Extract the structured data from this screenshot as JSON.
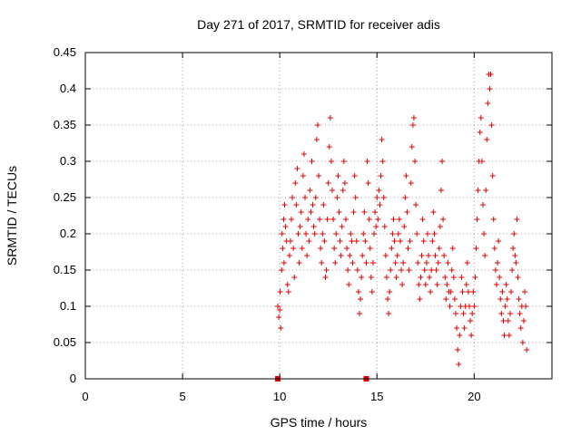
{
  "chart_data": {
    "type": "scatter",
    "title": "Day 271 of 2017, SRMTID for receiver adis",
    "xlabel": "GPS time / hours",
    "ylabel": "SRMTID / TECUs",
    "xlim": [
      0,
      24
    ],
    "ylim": [
      0,
      0.45
    ],
    "xticks": [
      0,
      5,
      10,
      15,
      20
    ],
    "xtick_labels": [
      "0",
      "5",
      "10",
      "15",
      "20"
    ],
    "yticks": [
      0,
      0.05,
      0.1,
      0.15,
      0.2,
      0.25,
      0.3,
      0.35,
      0.4,
      0.45
    ],
    "ytick_labels": [
      "0",
      "0.05",
      "0.1",
      "0.15",
      "0.2",
      "0.25",
      "0.3",
      "0.35",
      "0.4",
      "0.45"
    ],
    "grid": true,
    "colors": {
      "series": "#e00000",
      "grid": "#a0a0a0",
      "axis": "#000000"
    },
    "zero_markers": [
      {
        "x": 9.9,
        "y": 0
      },
      {
        "x": 14.45,
        "y": 0
      }
    ],
    "series": [
      {
        "name": "SRMTID",
        "marker": "plus",
        "points": [
          [
            9.9,
            0.1
          ],
          [
            9.95,
            0.085
          ],
          [
            10.0,
            0.095
          ],
          [
            10.02,
            0.12
          ],
          [
            10.05,
            0.07
          ],
          [
            10.1,
            0.15
          ],
          [
            10.12,
            0.2
          ],
          [
            10.15,
            0.18
          ],
          [
            10.2,
            0.22
          ],
          [
            10.22,
            0.16
          ],
          [
            10.25,
            0.24
          ],
          [
            10.3,
            0.21
          ],
          [
            10.35,
            0.19
          ],
          [
            10.4,
            0.13
          ],
          [
            10.45,
            0.12
          ],
          [
            10.5,
            0.17
          ],
          [
            10.55,
            0.19
          ],
          [
            10.6,
            0.22
          ],
          [
            10.65,
            0.25
          ],
          [
            10.7,
            0.18
          ],
          [
            10.75,
            0.14
          ],
          [
            10.8,
            0.27
          ],
          [
            10.85,
            0.24
          ],
          [
            10.9,
            0.29
          ],
          [
            10.95,
            0.2
          ],
          [
            11.0,
            0.16
          ],
          [
            11.05,
            0.21
          ],
          [
            11.1,
            0.23
          ],
          [
            11.15,
            0.18
          ],
          [
            11.2,
            0.28
          ],
          [
            11.25,
            0.31
          ],
          [
            11.3,
            0.25
          ],
          [
            11.35,
            0.2
          ],
          [
            11.4,
            0.17
          ],
          [
            11.45,
            0.22
          ],
          [
            11.5,
            0.19
          ],
          [
            11.55,
            0.26
          ],
          [
            11.6,
            0.23
          ],
          [
            11.65,
            0.3
          ],
          [
            11.7,
            0.24
          ],
          [
            11.75,
            0.21
          ],
          [
            11.8,
            0.2
          ],
          [
            11.85,
            0.25
          ],
          [
            11.9,
            0.33
          ],
          [
            11.95,
            0.35
          ],
          [
            12.0,
            0.28
          ],
          [
            12.05,
            0.22
          ],
          [
            12.1,
            0.18
          ],
          [
            12.15,
            0.16
          ],
          [
            12.2,
            0.2
          ],
          [
            12.25,
            0.24
          ],
          [
            12.3,
            0.19
          ],
          [
            12.35,
            0.14
          ],
          [
            12.4,
            0.15
          ],
          [
            12.45,
            0.22
          ],
          [
            12.5,
            0.27
          ],
          [
            12.55,
            0.32
          ],
          [
            12.6,
            0.36
          ],
          [
            12.65,
            0.3
          ],
          [
            12.7,
            0.26
          ],
          [
            12.75,
            0.22
          ],
          [
            12.8,
            0.18
          ],
          [
            12.85,
            0.16
          ],
          [
            12.9,
            0.2
          ],
          [
            12.95,
            0.25
          ],
          [
            13.0,
            0.28
          ],
          [
            13.05,
            0.23
          ],
          [
            13.1,
            0.19
          ],
          [
            13.15,
            0.17
          ],
          [
            13.2,
            0.21
          ],
          [
            13.25,
            0.26
          ],
          [
            13.3,
            0.3
          ],
          [
            13.35,
            0.27
          ],
          [
            13.4,
            0.22
          ],
          [
            13.45,
            0.18
          ],
          [
            13.5,
            0.15
          ],
          [
            13.55,
            0.13
          ],
          [
            13.6,
            0.17
          ],
          [
            13.65,
            0.2
          ],
          [
            13.7,
            0.19
          ],
          [
            13.75,
            0.16
          ],
          [
            13.8,
            0.23
          ],
          [
            13.85,
            0.28
          ],
          [
            13.9,
            0.25
          ],
          [
            13.95,
            0.19
          ],
          [
            14.0,
            0.15
          ],
          [
            14.05,
            0.12
          ],
          [
            14.1,
            0.09
          ],
          [
            14.15,
            0.11
          ],
          [
            14.2,
            0.14
          ],
          [
            14.25,
            0.17
          ],
          [
            14.3,
            0.2
          ],
          [
            14.35,
            0.23
          ],
          [
            14.4,
            0.19
          ],
          [
            14.45,
            0.16
          ],
          [
            14.5,
            0.3
          ],
          [
            14.55,
            0.27
          ],
          [
            14.6,
            0.22
          ],
          [
            14.65,
            0.18
          ],
          [
            14.7,
            0.14
          ],
          [
            14.75,
            0.12
          ],
          [
            14.8,
            0.16
          ],
          [
            14.85,
            0.2
          ],
          [
            14.9,
            0.23
          ],
          [
            14.95,
            0.21
          ],
          [
            15.0,
            0.25
          ],
          [
            15.05,
            0.22
          ],
          [
            15.1,
            0.26
          ],
          [
            15.15,
            0.24
          ],
          [
            15.2,
            0.28
          ],
          [
            15.25,
            0.33
          ],
          [
            15.3,
            0.3
          ],
          [
            15.35,
            0.25
          ],
          [
            15.4,
            0.21
          ],
          [
            15.45,
            0.17
          ],
          [
            15.5,
            0.14
          ],
          [
            15.55,
            0.11
          ],
          [
            15.6,
            0.09
          ],
          [
            15.65,
            0.12
          ],
          [
            15.7,
            0.15
          ],
          [
            15.75,
            0.18
          ],
          [
            15.8,
            0.2
          ],
          [
            15.85,
            0.22
          ],
          [
            15.9,
            0.19
          ],
          [
            15.95,
            0.16
          ],
          [
            16.0,
            0.14
          ],
          [
            16.05,
            0.17
          ],
          [
            16.1,
            0.2
          ],
          [
            16.15,
            0.22
          ],
          [
            16.2,
            0.19
          ],
          [
            16.25,
            0.15
          ],
          [
            16.3,
            0.13
          ],
          [
            16.35,
            0.16
          ],
          [
            16.4,
            0.21
          ],
          [
            16.45,
            0.25
          ],
          [
            16.5,
            0.28
          ],
          [
            16.55,
            0.23
          ],
          [
            16.6,
            0.18
          ],
          [
            16.65,
            0.15
          ],
          [
            16.7,
            0.19
          ],
          [
            16.75,
            0.27
          ],
          [
            16.8,
            0.32
          ],
          [
            16.85,
            0.35
          ],
          [
            16.9,
            0.36
          ],
          [
            16.95,
            0.3
          ],
          [
            17.0,
            0.24
          ],
          [
            17.05,
            0.2
          ],
          [
            17.1,
            0.16
          ],
          [
            17.15,
            0.13
          ],
          [
            17.2,
            0.11
          ],
          [
            17.25,
            0.14
          ],
          [
            17.3,
            0.17
          ],
          [
            17.35,
            0.22
          ],
          [
            17.4,
            0.19
          ],
          [
            17.45,
            0.15
          ],
          [
            17.5,
            0.13
          ],
          [
            17.55,
            0.16
          ],
          [
            17.6,
            0.2
          ],
          [
            17.65,
            0.17
          ],
          [
            17.7,
            0.14
          ],
          [
            17.75,
            0.12
          ],
          [
            17.8,
            0.15
          ],
          [
            17.85,
            0.19
          ],
          [
            17.9,
            0.23
          ],
          [
            17.95,
            0.2
          ],
          [
            18.0,
            0.17
          ],
          [
            18.05,
            0.15
          ],
          [
            18.1,
            0.13
          ],
          [
            18.15,
            0.16
          ],
          [
            18.2,
            0.18
          ],
          [
            18.25,
            0.21
          ],
          [
            18.3,
            0.26
          ],
          [
            18.35,
            0.3
          ],
          [
            18.4,
            0.22
          ],
          [
            18.45,
            0.17
          ],
          [
            18.5,
            0.14
          ],
          [
            18.55,
            0.11
          ],
          [
            18.6,
            0.13
          ],
          [
            18.65,
            0.16
          ],
          [
            18.7,
            0.12
          ],
          [
            18.75,
            0.1
          ],
          [
            18.8,
            0.12
          ],
          [
            18.85,
            0.15
          ],
          [
            18.9,
            0.18
          ],
          [
            18.95,
            0.14
          ],
          [
            19.0,
            0.11
          ],
          [
            19.05,
            0.09
          ],
          [
            19.1,
            0.07
          ],
          [
            19.15,
            0.04
          ],
          [
            19.2,
            0.02
          ],
          [
            19.25,
            0.06
          ],
          [
            19.3,
            0.1
          ],
          [
            19.35,
            0.14
          ],
          [
            19.4,
            0.12
          ],
          [
            19.45,
            0.09
          ],
          [
            19.5,
            0.07
          ],
          [
            19.55,
            0.1
          ],
          [
            19.6,
            0.13
          ],
          [
            19.65,
            0.16
          ],
          [
            19.7,
            0.12
          ],
          [
            19.75,
            0.1
          ],
          [
            19.8,
            0.08
          ],
          [
            19.85,
            0.06
          ],
          [
            19.9,
            0.09
          ],
          [
            19.95,
            0.12
          ],
          [
            20.0,
            0.1
          ],
          [
            20.05,
            0.14
          ],
          [
            20.1,
            0.18
          ],
          [
            20.15,
            0.22
          ],
          [
            20.2,
            0.26
          ],
          [
            20.25,
            0.3
          ],
          [
            20.3,
            0.34
          ],
          [
            20.35,
            0.36
          ],
          [
            20.4,
            0.3
          ],
          [
            20.45,
            0.24
          ],
          [
            20.5,
            0.2
          ],
          [
            20.55,
            0.17
          ],
          [
            20.6,
            0.26
          ],
          [
            20.65,
            0.33
          ],
          [
            20.7,
            0.38
          ],
          [
            20.75,
            0.42
          ],
          [
            20.8,
            0.4
          ],
          [
            20.85,
            0.42
          ],
          [
            20.9,
            0.35
          ],
          [
            20.95,
            0.28
          ],
          [
            21.0,
            0.22
          ],
          [
            21.05,
            0.18
          ],
          [
            21.1,
            0.15
          ],
          [
            21.15,
            0.13
          ],
          [
            21.2,
            0.16
          ],
          [
            21.25,
            0.19
          ],
          [
            21.3,
            0.14
          ],
          [
            21.35,
            0.11
          ],
          [
            21.4,
            0.09
          ],
          [
            21.45,
            0.12
          ],
          [
            21.5,
            0.08
          ],
          [
            21.55,
            0.06
          ],
          [
            21.6,
            0.1
          ],
          [
            21.65,
            0.13
          ],
          [
            21.7,
            0.11
          ],
          [
            21.75,
            0.08
          ],
          [
            21.8,
            0.06
          ],
          [
            21.85,
            0.09
          ],
          [
            21.9,
            0.12
          ],
          [
            21.95,
            0.15
          ],
          [
            22.0,
            0.18
          ],
          [
            22.05,
            0.2
          ],
          [
            22.1,
            0.17
          ],
          [
            22.15,
            0.16
          ],
          [
            22.2,
            0.22
          ],
          [
            22.25,
            0.14
          ],
          [
            22.3,
            0.11
          ],
          [
            22.35,
            0.09
          ],
          [
            22.4,
            0.07
          ],
          [
            22.45,
            0.1
          ],
          [
            22.5,
            0.05
          ],
          [
            22.55,
            0.08
          ],
          [
            22.6,
            0.12
          ],
          [
            22.65,
            0.1
          ],
          [
            22.7,
            0.04
          ]
        ]
      }
    ]
  }
}
